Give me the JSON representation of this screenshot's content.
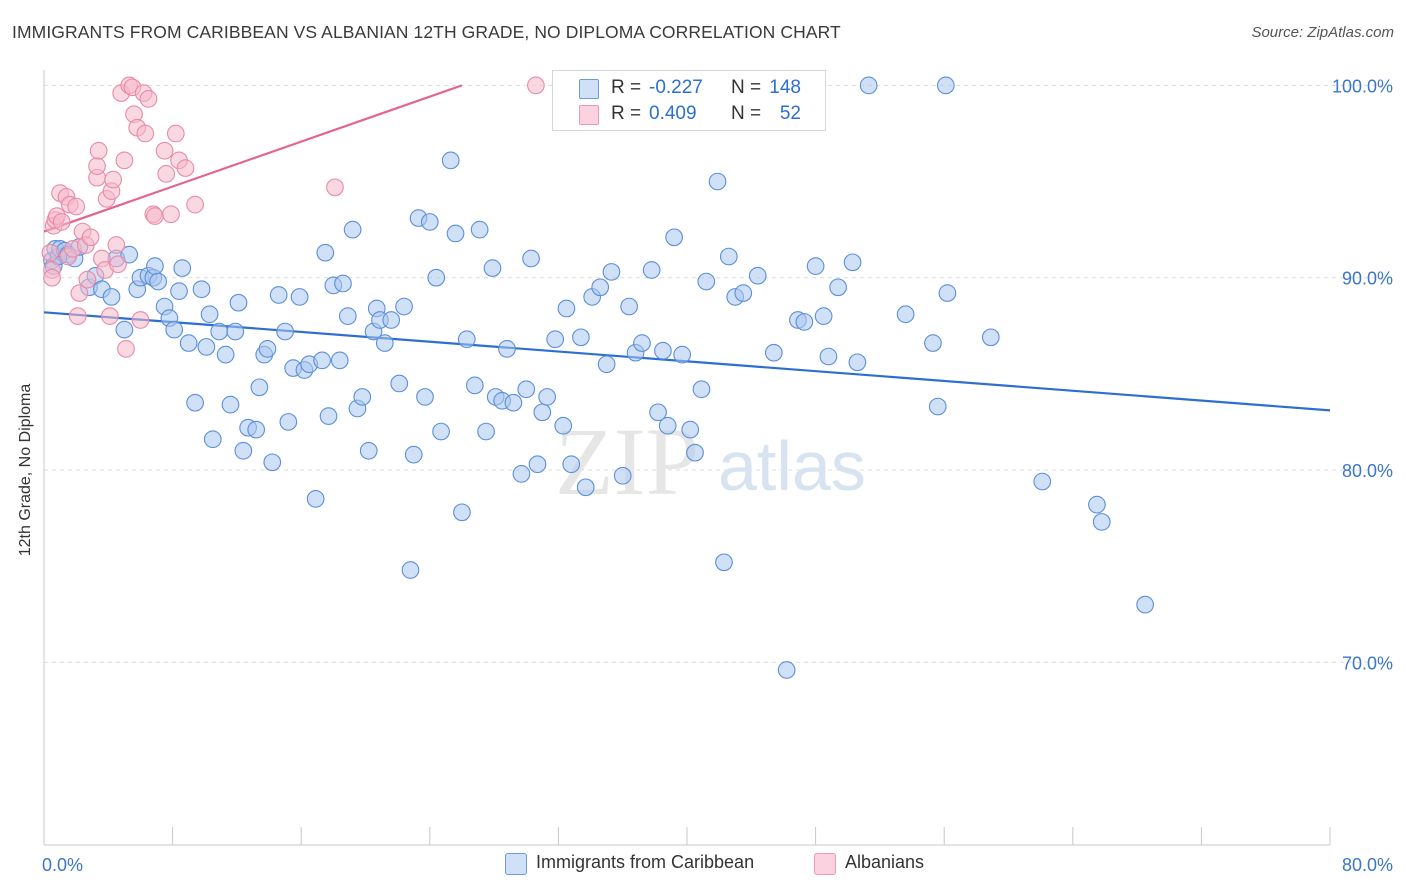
{
  "header": {
    "title": "IMMIGRANTS FROM CARIBBEAN VS ALBANIAN 12TH GRADE, NO DIPLOMA CORRELATION CHART",
    "source": "Source: ZipAtlas.com"
  },
  "watermark": {
    "zip": "ZIP",
    "atlas": "atlas"
  },
  "colors": {
    "blue_fill": "#a9c6ef",
    "blue_stroke": "#5b8fd9",
    "blue_line": "#2c6fd1",
    "pink_fill": "#f6b8cb",
    "pink_stroke": "#e88aa8",
    "pink_line": "#e5648e",
    "tick_text": "#3b76c9",
    "grid": "#dcdcdc"
  },
  "legend_top": [
    {
      "r_label": "R =",
      "r_value": "-0.227",
      "n_label": "N =",
      "n_value": "148",
      "color": "#a9c6ef"
    },
    {
      "r_label": "R =",
      "r_value": "0.409",
      "n_label": "N =",
      "n_value": "52",
      "color": "#f6b8cb"
    }
  ],
  "legend_bottom": [
    {
      "label": "Immigrants from Caribbean",
      "color": "#a9c6ef"
    },
    {
      "label": "Albanians",
      "color": "#f6b8cb"
    }
  ],
  "chart_data": {
    "type": "scatter",
    "title": "IMMIGRANTS FROM CARIBBEAN VS ALBANIAN 12TH GRADE, NO DIPLOMA CORRELATION CHART",
    "xlabel": "",
    "ylabel": "12th Grade, No Diploma",
    "xlim": [
      0,
      80
    ],
    "ylim": [
      60.5,
      100.8
    ],
    "x_tick_labels": [
      "0.0%",
      "80.0%"
    ],
    "y_ticks": [
      70,
      80,
      90,
      100
    ],
    "y_tick_labels": [
      "70.0%",
      "80.0%",
      "90.0%",
      "100.0%"
    ],
    "grid": "horizontal dashed",
    "legend_position": "top-center",
    "series": [
      {
        "name": "Immigrants from Caribbean",
        "R": -0.227,
        "N": 148,
        "trend": {
          "x": [
            0,
            80
          ],
          "y": [
            88.2,
            83.1
          ]
        },
        "points": [
          [
            0.5,
            90.9
          ],
          [
            0.6,
            90.6
          ],
          [
            0.7,
            91.5
          ],
          [
            0.9,
            91.1
          ],
          [
            1.0,
            91.5
          ],
          [
            1.3,
            91.4
          ],
          [
            1.5,
            91.2
          ],
          [
            1.9,
            91.0
          ],
          [
            2.2,
            91.6
          ],
          [
            2.8,
            89.5
          ],
          [
            3.2,
            90.1
          ],
          [
            3.6,
            89.4
          ],
          [
            4.2,
            89.0
          ],
          [
            4.5,
            91.0
          ],
          [
            5.0,
            87.3
          ],
          [
            5.3,
            91.2
          ],
          [
            5.8,
            89.4
          ],
          [
            6.0,
            90.0
          ],
          [
            6.5,
            90.1
          ],
          [
            6.8,
            90.0
          ],
          [
            6.9,
            90.6
          ],
          [
            7.1,
            89.8
          ],
          [
            7.5,
            88.5
          ],
          [
            7.8,
            87.9
          ],
          [
            8.1,
            87.3
          ],
          [
            8.4,
            89.3
          ],
          [
            8.6,
            90.5
          ],
          [
            9.0,
            86.6
          ],
          [
            9.4,
            83.5
          ],
          [
            9.8,
            89.4
          ],
          [
            10.1,
            86.4
          ],
          [
            10.3,
            88.1
          ],
          [
            10.5,
            81.6
          ],
          [
            10.9,
            87.2
          ],
          [
            11.3,
            86.0
          ],
          [
            11.6,
            83.4
          ],
          [
            11.9,
            87.2
          ],
          [
            12.1,
            88.7
          ],
          [
            12.4,
            81.0
          ],
          [
            12.7,
            82.2
          ],
          [
            13.2,
            82.1
          ],
          [
            13.4,
            84.3
          ],
          [
            13.7,
            86.0
          ],
          [
            13.9,
            86.3
          ],
          [
            14.2,
            80.4
          ],
          [
            14.6,
            89.1
          ],
          [
            15.0,
            87.2
          ],
          [
            15.2,
            82.5
          ],
          [
            15.5,
            85.3
          ],
          [
            15.9,
            89.0
          ],
          [
            16.2,
            85.2
          ],
          [
            16.5,
            85.5
          ],
          [
            16.9,
            78.5
          ],
          [
            17.3,
            85.7
          ],
          [
            17.5,
            91.3
          ],
          [
            17.7,
            82.8
          ],
          [
            18.0,
            89.6
          ],
          [
            18.4,
            85.7
          ],
          [
            18.6,
            89.7
          ],
          [
            18.9,
            88.0
          ],
          [
            19.2,
            92.5
          ],
          [
            19.5,
            83.2
          ],
          [
            19.8,
            83.8
          ],
          [
            20.2,
            81.0
          ],
          [
            20.5,
            87.2
          ],
          [
            20.7,
            88.4
          ],
          [
            20.9,
            87.8
          ],
          [
            21.2,
            86.6
          ],
          [
            21.6,
            87.8
          ],
          [
            22.1,
            84.5
          ],
          [
            22.4,
            88.5
          ],
          [
            22.8,
            74.8
          ],
          [
            23.0,
            80.8
          ],
          [
            23.3,
            93.1
          ],
          [
            23.7,
            83.8
          ],
          [
            24.0,
            92.9
          ],
          [
            24.4,
            90.0
          ],
          [
            24.7,
            82.0
          ],
          [
            25.3,
            96.1
          ],
          [
            25.6,
            92.3
          ],
          [
            26.0,
            77.8
          ],
          [
            26.3,
            86.8
          ],
          [
            26.8,
            84.4
          ],
          [
            27.1,
            92.5
          ],
          [
            27.5,
            82.0
          ],
          [
            27.9,
            90.5
          ],
          [
            28.1,
            83.8
          ],
          [
            28.5,
            83.6
          ],
          [
            28.8,
            86.3
          ],
          [
            29.2,
            83.5
          ],
          [
            29.7,
            79.8
          ],
          [
            30.0,
            84.2
          ],
          [
            30.3,
            91.0
          ],
          [
            30.7,
            80.3
          ],
          [
            31.0,
            83.0
          ],
          [
            31.3,
            83.8
          ],
          [
            31.8,
            86.8
          ],
          [
            32.3,
            82.3
          ],
          [
            32.5,
            88.4
          ],
          [
            32.8,
            80.3
          ],
          [
            33.4,
            86.9
          ],
          [
            33.7,
            79.1
          ],
          [
            34.1,
            89.0
          ],
          [
            34.6,
            89.5
          ],
          [
            35.0,
            85.5
          ],
          [
            35.3,
            90.3
          ],
          [
            36.0,
            79.7
          ],
          [
            36.4,
            88.5
          ],
          [
            36.8,
            86.1
          ],
          [
            37.2,
            86.6
          ],
          [
            37.8,
            90.4
          ],
          [
            38.2,
            83.0
          ],
          [
            38.5,
            86.2
          ],
          [
            38.8,
            82.3
          ],
          [
            39.2,
            92.1
          ],
          [
            39.7,
            86.0
          ],
          [
            40.2,
            82.1
          ],
          [
            40.5,
            80.9
          ],
          [
            40.9,
            84.2
          ],
          [
            41.2,
            89.8
          ],
          [
            41.9,
            95.0
          ],
          [
            42.3,
            75.2
          ],
          [
            42.6,
            91.1
          ],
          [
            43.0,
            89.0
          ],
          [
            43.5,
            89.2
          ],
          [
            44.4,
            90.1
          ],
          [
            45.4,
            86.1
          ],
          [
            46.2,
            69.6
          ],
          [
            46.9,
            87.8
          ],
          [
            47.3,
            87.7
          ],
          [
            48.0,
            90.6
          ],
          [
            48.5,
            88.0
          ],
          [
            48.8,
            85.9
          ],
          [
            49.4,
            89.5
          ],
          [
            50.3,
            90.8
          ],
          [
            50.6,
            85.6
          ],
          [
            51.3,
            100.0
          ],
          [
            53.6,
            88.1
          ],
          [
            55.3,
            86.6
          ],
          [
            55.6,
            83.3
          ],
          [
            56.2,
            89.2
          ],
          [
            56.1,
            100.0
          ],
          [
            58.9,
            86.9
          ],
          [
            62.1,
            79.4
          ],
          [
            65.5,
            78.2
          ],
          [
            65.8,
            77.3
          ],
          [
            68.5,
            73.0
          ]
        ]
      },
      {
        "name": "Albanians",
        "R": 0.409,
        "N": 52,
        "trend": {
          "x": [
            0,
            26
          ],
          "y": [
            92.4,
            100.0
          ]
        },
        "points": [
          [
            0.4,
            91.3
          ],
          [
            0.5,
            90.4
          ],
          [
            0.5,
            90.0
          ],
          [
            0.6,
            92.7
          ],
          [
            0.7,
            93.0
          ],
          [
            0.8,
            93.2
          ],
          [
            1.0,
            94.4
          ],
          [
            1.1,
            92.9
          ],
          [
            1.4,
            94.2
          ],
          [
            1.5,
            91.1
          ],
          [
            1.6,
            93.8
          ],
          [
            1.8,
            91.5
          ],
          [
            2.0,
            93.7
          ],
          [
            2.1,
            88.0
          ],
          [
            2.2,
            89.2
          ],
          [
            2.4,
            92.4
          ],
          [
            2.6,
            91.7
          ],
          [
            2.7,
            89.9
          ],
          [
            2.9,
            92.1
          ],
          [
            3.3,
            95.2
          ],
          [
            3.3,
            95.8
          ],
          [
            3.4,
            96.6
          ],
          [
            3.6,
            91.0
          ],
          [
            3.8,
            90.4
          ],
          [
            3.9,
            94.1
          ],
          [
            4.1,
            88.0
          ],
          [
            4.2,
            94.5
          ],
          [
            4.3,
            95.1
          ],
          [
            4.5,
            91.7
          ],
          [
            4.6,
            90.7
          ],
          [
            4.8,
            99.6
          ],
          [
            5.0,
            96.1
          ],
          [
            5.1,
            86.3
          ],
          [
            5.3,
            100.0
          ],
          [
            5.5,
            99.9
          ],
          [
            5.6,
            98.5
          ],
          [
            5.8,
            97.8
          ],
          [
            6.0,
            87.8
          ],
          [
            6.2,
            99.6
          ],
          [
            6.3,
            97.5
          ],
          [
            6.5,
            99.3
          ],
          [
            6.8,
            93.3
          ],
          [
            6.9,
            93.2
          ],
          [
            7.5,
            96.6
          ],
          [
            7.6,
            95.4
          ],
          [
            7.9,
            93.3
          ],
          [
            8.2,
            97.5
          ],
          [
            8.4,
            96.1
          ],
          [
            8.8,
            95.7
          ],
          [
            9.4,
            93.8
          ],
          [
            18.1,
            94.7
          ],
          [
            30.6,
            100.0
          ]
        ]
      }
    ]
  }
}
